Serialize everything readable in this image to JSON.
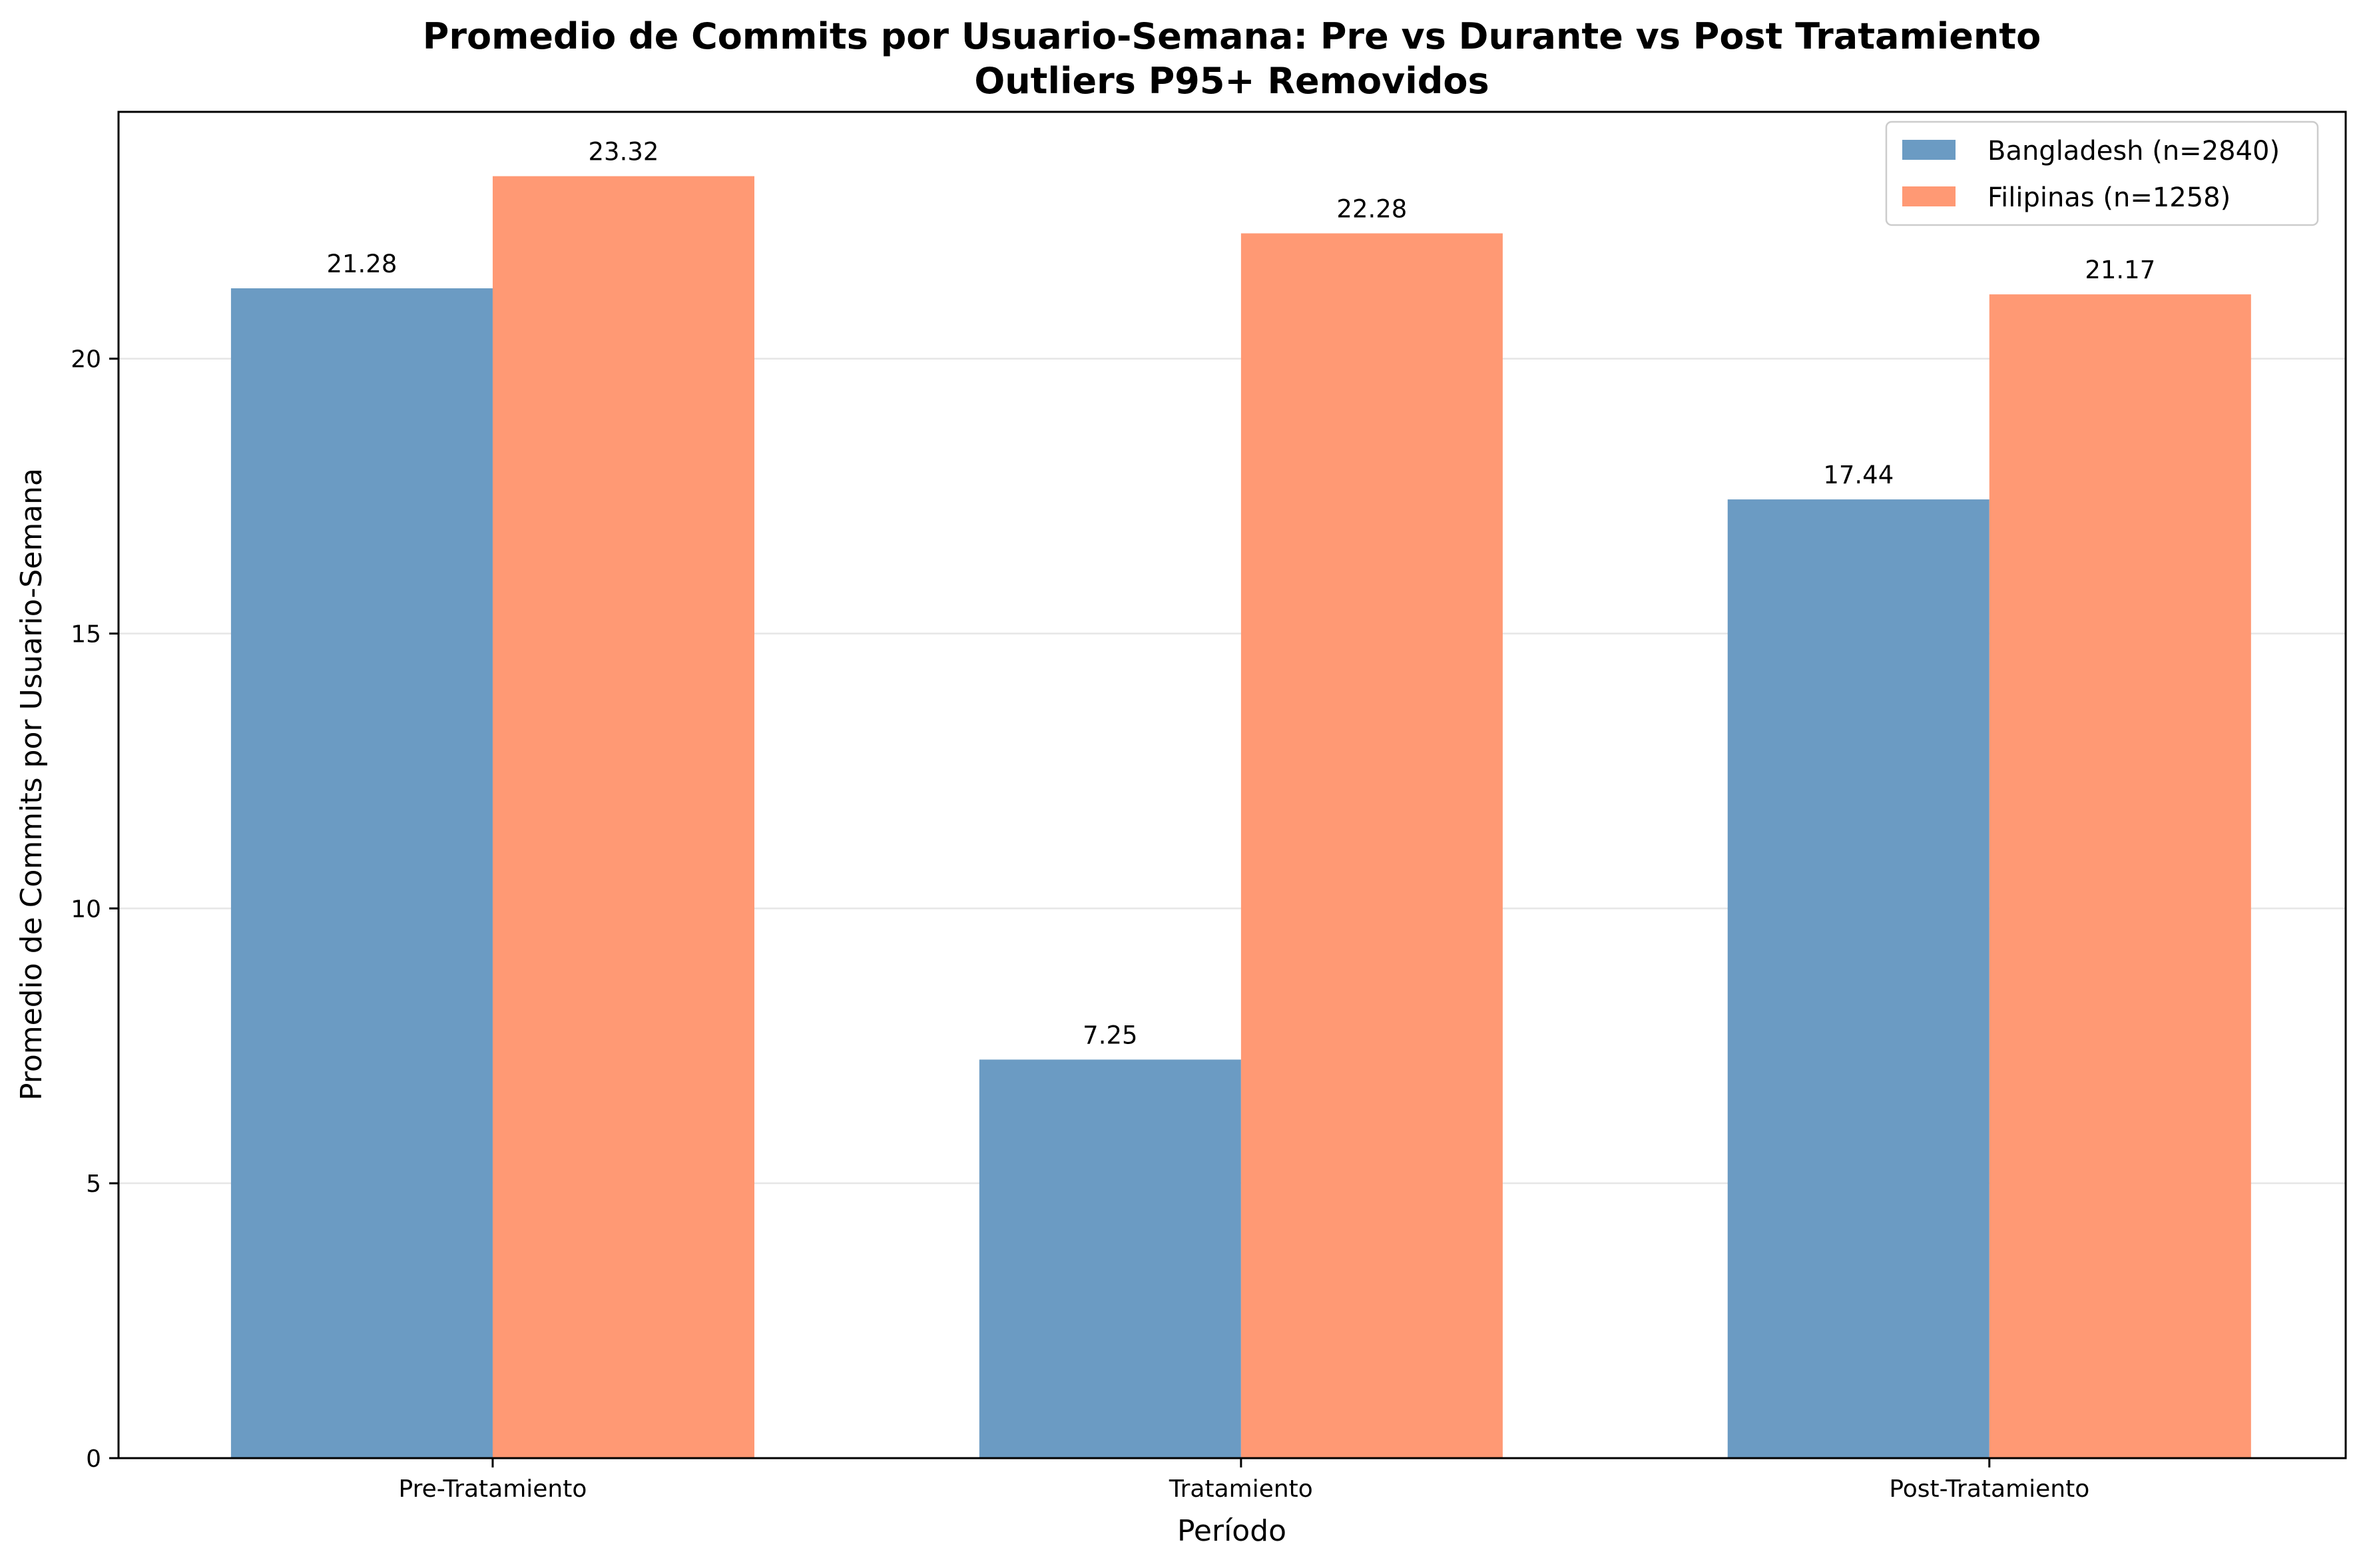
{
  "chart_data": {
    "type": "bar",
    "title": "Promedio de Commits por Usuario-Semana: Pre vs Durante vs Post Tratamiento",
    "subtitle": "Outliers P95+ Removidos",
    "xlabel": "Período",
    "ylabel": "Promedio de Commits por Usuario-Semana",
    "categories": [
      "Pre-Tratamiento",
      "Tratamiento",
      "Post-Tratamiento"
    ],
    "series": [
      {
        "name": "Bangladesh (n=2840)",
        "values": [
          21.28,
          7.25,
          17.44
        ],
        "labels": [
          "21.28",
          "7.25",
          "17.44"
        ],
        "color": "#6b9bc3"
      },
      {
        "name": "Filipinas (n=1258)",
        "values": [
          23.32,
          22.28,
          21.17
        ],
        "labels": [
          "23.32",
          "22.28",
          "21.17"
        ],
        "color": "#ff9974"
      }
    ],
    "ylim": [
      0,
      24.49
    ],
    "yticks": [
      0,
      5,
      10,
      15,
      20
    ],
    "ytick_labels": [
      "0",
      "5",
      "10",
      "15",
      "20"
    ],
    "grid": true,
    "legend_position": "top-right"
  }
}
